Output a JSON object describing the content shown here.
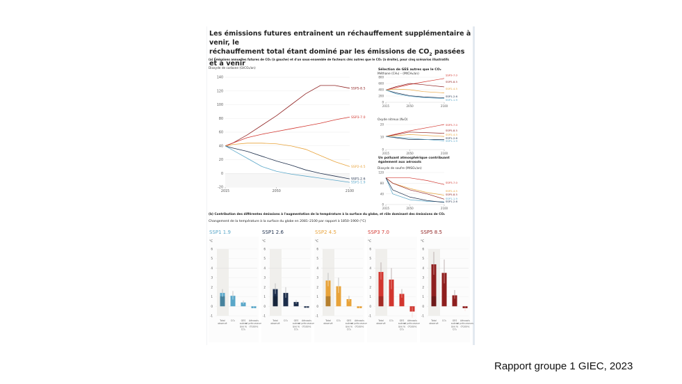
{
  "figure": {
    "title_line1": "Les émissions futures entraînent un réchauffement supplémentaire à venir, le",
    "title_line2_pre": "réchauffement total étant dominé par les émissions de CO",
    "title_line2_sub": "2",
    "title_line2_post": " passées et à venir",
    "panel_a_label": "(a) Émissions annuelles futures de CO₂ (à gauche) et d'un sous-ensemble de facteurs clés autres que le CO₂ (à droite), pour cinq scénarios illustratifs",
    "panel_b_label": "(b) Contribution des différentes émissions à l'augmentation de la température à la surface du globe, et rôle dominant des émissions de CO₂",
    "panel_b_sublabel": "Changement de la température à la surface du globe en 2081–2100 par rapport à 1850–1900 (°C)",
    "right_header": "Sélection de GES autres que le CO₂",
    "aerosol_header_1": "Un polluant atmosphérique contribuant",
    "aerosol_header_2": "également aux aérosols"
  },
  "colors": {
    "SSP1-1.9": "#5aa7c9",
    "SSP1-2.6": "#1c2d4a",
    "SSP2-4.5": "#e8a33a",
    "SSP3-7.0": "#d2362f",
    "SSP5-8.5": "#8e1f1f"
  },
  "caption": "Rapport groupe 1 GIEC, 2023",
  "chart_data": [
    {
      "id": "co2",
      "type": "line",
      "title": "Dioxyde de carbone (GtCO₂/an)",
      "xlabel": "",
      "ylabel": "Dioxyde de carbone (GtCO₂/an)",
      "xlim": [
        2015,
        2100
      ],
      "ylim": [
        -20,
        140
      ],
      "xticks": [
        2015,
        2050,
        2100
      ],
      "yticks": [
        -20,
        0,
        20,
        40,
        60,
        80,
        100,
        120,
        140
      ],
      "grid": true,
      "x": [
        2015,
        2020,
        2030,
        2040,
        2050,
        2060,
        2070,
        2080,
        2090,
        2100
      ],
      "series": [
        {
          "name": "SSP5-8.5",
          "label": "SSP5-8.5",
          "values": [
            40,
            44,
            56,
            70,
            84,
            100,
            116,
            128,
            128,
            124
          ]
        },
        {
          "name": "SSP3-7.0",
          "label": "SSP3-7.0",
          "values": [
            40,
            44,
            52,
            57,
            61,
            65,
            69,
            73,
            78,
            82
          ]
        },
        {
          "name": "SSP2-4.5",
          "label": "SSP2-4.5",
          "values": [
            40,
            42,
            44,
            44,
            43,
            40,
            35,
            26,
            17,
            10
          ]
        },
        {
          "name": "SSP1-2.6",
          "label": "SSP1-2.6",
          "values": [
            40,
            37,
            32,
            25,
            18,
            12,
            5,
            0,
            -4,
            -8
          ]
        },
        {
          "name": "SSP1-1.9",
          "label": "SSP1-1.9",
          "values": [
            40,
            34,
            22,
            10,
            3,
            -1,
            -4,
            -7,
            -10,
            -13
          ]
        }
      ]
    },
    {
      "id": "ch4",
      "type": "line",
      "title": "Méthane (CH₄) – (MtCH₄/an)",
      "xlim": [
        2015,
        2100
      ],
      "ylim": [
        0,
        800
      ],
      "xticks": [
        2015,
        2050,
        2100
      ],
      "yticks": [
        0,
        200,
        400,
        600,
        800
      ],
      "x": [
        2015,
        2030,
        2050,
        2070,
        2100
      ],
      "series": [
        {
          "name": "SSP3-7.0",
          "label": "SSP3-7.0",
          "values": [
            390,
            470,
            570,
            650,
            760
          ]
        },
        {
          "name": "SSP5-8.5",
          "label": "SSP5-8.5",
          "values": [
            390,
            500,
            600,
            560,
            490
          ]
        },
        {
          "name": "SSP2-4.5",
          "label": "SSP2-4.5",
          "values": [
            390,
            420,
            400,
            340,
            300
          ]
        },
        {
          "name": "SSP1-2.6",
          "label": "SSP1-2.6",
          "values": [
            390,
            300,
            210,
            170,
            140
          ]
        },
        {
          "name": "SSP1-1.9",
          "label": "SSP1-1.9",
          "values": [
            390,
            270,
            190,
            150,
            120
          ]
        }
      ]
    },
    {
      "id": "n2o",
      "type": "line",
      "title": "Oxyde nitreux (N₂O)",
      "xlim": [
        2015,
        2100
      ],
      "ylim": [
        0,
        20
      ],
      "xticks": [
        2015,
        2050,
        2100
      ],
      "yticks": [
        0,
        10,
        20
      ],
      "x": [
        2015,
        2050,
        2100
      ],
      "series": [
        {
          "name": "SSP3-7.0",
          "label": "SSP3-7.0",
          "values": [
            10.5,
            15,
            20
          ]
        },
        {
          "name": "SSP5-8.5",
          "label": "SSP5-8.5",
          "values": [
            10.5,
            14,
            13
          ]
        },
        {
          "name": "SSP2-4.5",
          "label": "SSP2-4.5",
          "values": [
            10.5,
            12,
            10.5
          ]
        },
        {
          "name": "SSP1-2.6",
          "label": "SSP1-2.6",
          "values": [
            10.5,
            8,
            8
          ]
        },
        {
          "name": "SSP1-1.9",
          "label": "SSP1-1.9",
          "values": [
            10.5,
            9,
            7
          ]
        }
      ]
    },
    {
      "id": "so2",
      "type": "line",
      "title": "Dioxyde de soufre (MtSO₂/an)",
      "xlim": [
        2015,
        2100
      ],
      "ylim": [
        0,
        120
      ],
      "xticks": [
        2015,
        2050,
        2100
      ],
      "yticks": [
        0,
        40,
        80,
        120
      ],
      "x": [
        2015,
        2025,
        2050,
        2075,
        2100
      ],
      "series": [
        {
          "name": "SSP3-7.0",
          "label": "SSP3-7.0",
          "values": [
            100,
            100,
            100,
            90,
            75
          ]
        },
        {
          "name": "SSP2-4.5",
          "label": "SSP2-4.5",
          "values": [
            100,
            80,
            60,
            45,
            35
          ]
        },
        {
          "name": "SSP5-8.5",
          "label": "SSP5-8.5",
          "values": [
            100,
            80,
            55,
            40,
            20
          ]
        },
        {
          "name": "SSP1-1.9",
          "label": "SSP1-1.9",
          "values": [
            100,
            40,
            18,
            12,
            10
          ]
        },
        {
          "name": "SSP1-2.6",
          "label": "SSP1-2.6",
          "values": [
            100,
            55,
            28,
            15,
            8
          ]
        }
      ]
    },
    {
      "id": "warming",
      "type": "bar",
      "title": "Changement de la température à la surface du globe en 2081–2100 par rapport à 1850–1900 (°C)",
      "ylabel": "°C",
      "ylim": [
        -1,
        6
      ],
      "yticks": [
        -1,
        0,
        1,
        2,
        3,
        4,
        5,
        6
      ],
      "categories": [
        "Total (observé)",
        "CO₂",
        "GES autres que le CO₂",
        "Aérosols et précurseurs d'ozone"
      ],
      "scenarios": [
        {
          "name": "SSP1-1.9",
          "values": [
            1.4,
            1.1,
            0.4,
            -0.2
          ],
          "ranges": [
            [
              1.0,
              1.8
            ],
            [
              0.7,
              1.6
            ],
            [
              0.2,
              0.6
            ],
            [
              -0.4,
              0.0
            ]
          ]
        },
        {
          "name": "SSP1-2.6",
          "values": [
            1.8,
            1.4,
            0.45,
            -0.15
          ],
          "ranges": [
            [
              1.3,
              2.4
            ],
            [
              0.9,
              2.0
            ],
            [
              0.25,
              0.65
            ],
            [
              -0.35,
              0.0
            ]
          ]
        },
        {
          "name": "SSP2-4.5",
          "values": [
            2.7,
            2.1,
            0.75,
            -0.2
          ],
          "ranges": [
            [
              2.1,
              3.5
            ],
            [
              1.4,
              3.0
            ],
            [
              0.5,
              1.1
            ],
            [
              -0.5,
              0.0
            ]
          ]
        },
        {
          "name": "SSP3-7.0",
          "values": [
            3.6,
            2.8,
            1.3,
            -0.55
          ],
          "ranges": [
            [
              2.8,
              4.6
            ],
            [
              1.8,
              4.0
            ],
            [
              0.9,
              1.8
            ],
            [
              -1.2,
              -0.1
            ]
          ]
        },
        {
          "name": "SSP5-8.5",
          "values": [
            4.4,
            3.5,
            1.15,
            -0.2
          ],
          "ranges": [
            [
              3.3,
              5.7
            ],
            [
              2.4,
              4.9
            ],
            [
              0.8,
              1.7
            ],
            [
              -0.5,
              0.0
            ]
          ]
        }
      ]
    }
  ]
}
